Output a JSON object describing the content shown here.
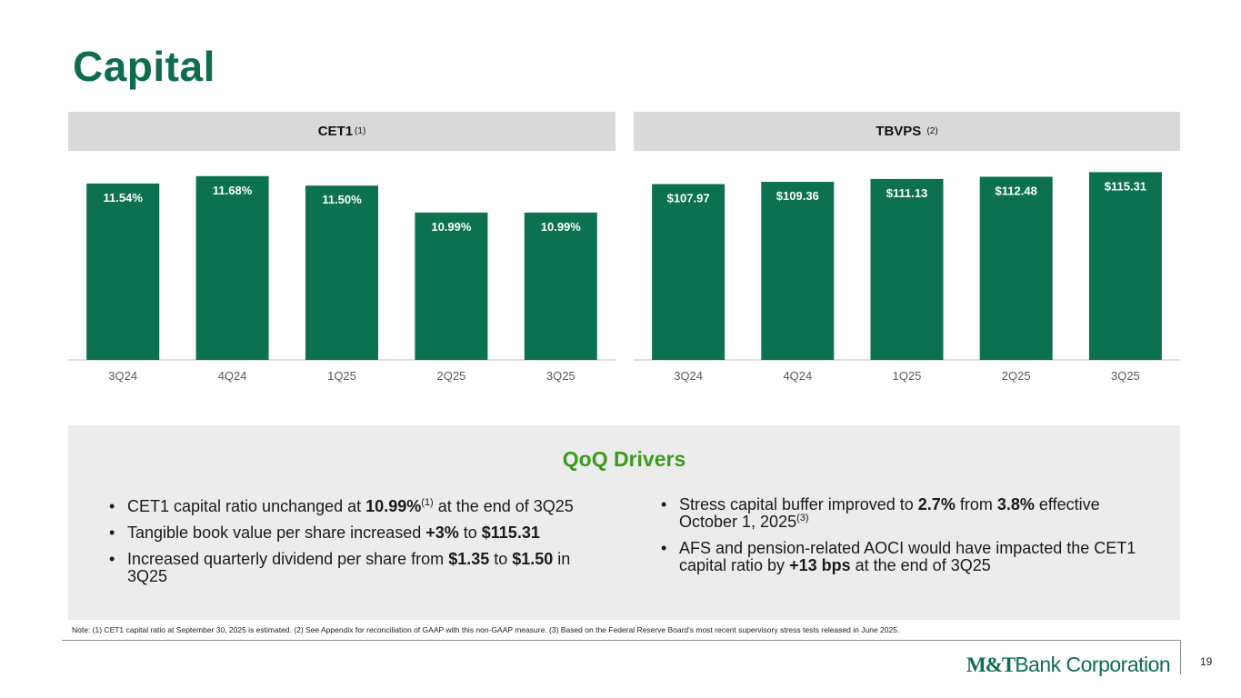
{
  "title": "Capital",
  "colors": {
    "brand_green": "#0e6e4b",
    "bar_green": "#0b7150",
    "accent_green": "#3a9a1e",
    "panel_gray": "#d9d9d9"
  },
  "chart_data": [
    {
      "type": "bar",
      "title": "CET1",
      "title_sup": "(1)",
      "categories": [
        "3Q24",
        "4Q24",
        "1Q25",
        "2Q25",
        "3Q25"
      ],
      "values": [
        11.54,
        11.68,
        11.5,
        10.99,
        10.99
      ],
      "data_labels": [
        "11.54%",
        "11.68%",
        "11.50%",
        "10.99%",
        "10.99%"
      ],
      "ylim": [
        8.2,
        11.9
      ],
      "grid": false,
      "legend": "none"
    },
    {
      "type": "bar",
      "title": "TBVPS",
      "title_sup": "(2)",
      "categories": [
        "3Q24",
        "4Q24",
        "1Q25",
        "2Q25",
        "3Q25"
      ],
      "values": [
        107.97,
        109.36,
        111.13,
        112.48,
        115.31
      ],
      "data_labels": [
        "$107.97",
        "$109.36",
        "$111.13",
        "$112.48",
        "$115.31"
      ],
      "ylim": [
        0,
        120
      ],
      "grid": false,
      "legend": "none"
    }
  ],
  "drivers": {
    "title": "QoQ Drivers",
    "left": [
      {
        "pre": "CET1 capital ratio unchanged at ",
        "b1": "10.99%",
        "sup": "(1)",
        "post": " at the end of 3Q25"
      },
      {
        "pre": "Tangible book value per share increased ",
        "b1": "+3%",
        "mid": " to ",
        "b2": "$115.31"
      },
      {
        "pre": "Increased quarterly dividend per share from ",
        "b1": "$1.35",
        "mid": " to ",
        "b2": "$1.50",
        "post": " in 3Q25"
      }
    ],
    "right": [
      {
        "pre": "Stress capital buffer improved to ",
        "b1": "2.7%",
        "mid": " from ",
        "b2": "3.8%",
        "post": " effective October 1, 2025",
        "sup": "(3)"
      },
      {
        "pre": "AFS and pension-related AOCI would have impacted the CET1 capital ratio by ",
        "b1": "+13 bps",
        "post": " at the end of 3Q25"
      }
    ]
  },
  "note": "Note: (1) CET1 capital ratio at September 30, 2025 is estimated. (2) See Appendix for reconciliation of GAAP with this non-GAAP measure. (3) Based on the Federal Reserve Board's most recent supervisory stress tests released in June 2025.",
  "logo": {
    "mt": "M&T",
    "rest": "Bank Corporation"
  },
  "page_number": "19"
}
